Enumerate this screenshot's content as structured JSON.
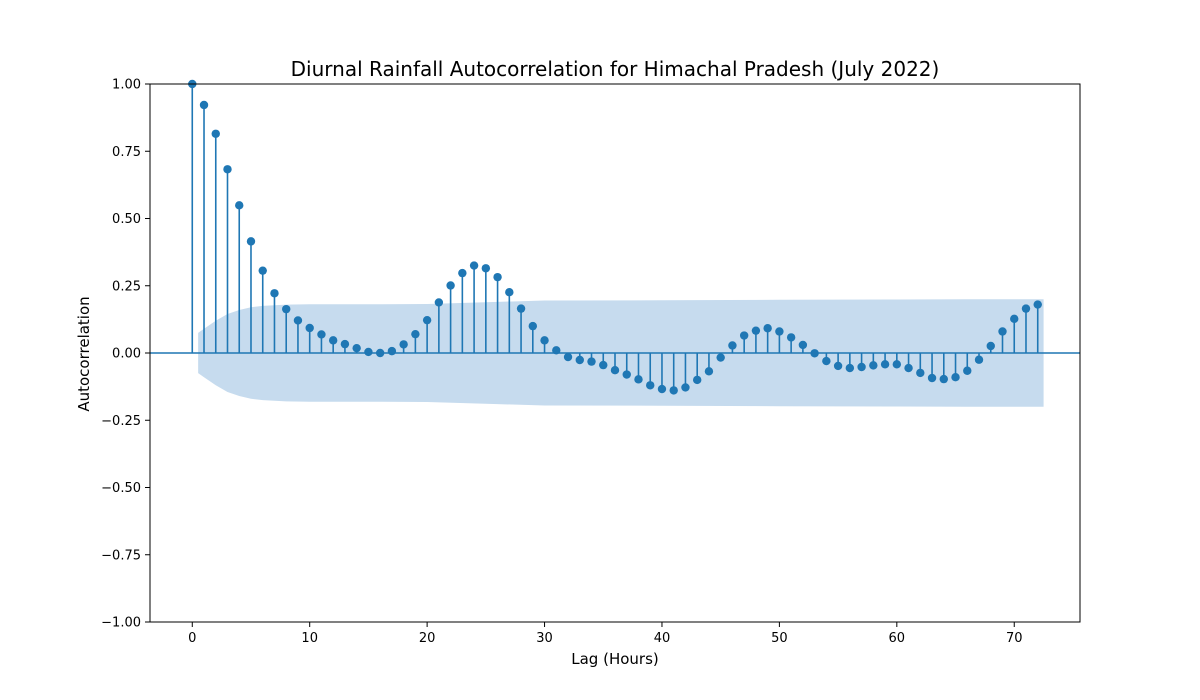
{
  "chart_data": {
    "type": "stem",
    "title": "Diurnal Rainfall Autocorrelation for Himachal Pradesh (July 2022)",
    "xlabel": "Lag (Hours)",
    "ylabel": "Autocorrelation",
    "xlim": [
      -3.6,
      75.6
    ],
    "ylim": [
      -1.0,
      1.0
    ],
    "xticks": [
      0,
      10,
      20,
      30,
      40,
      50,
      60,
      70
    ],
    "xtick_labels": [
      "0",
      "10",
      "20",
      "30",
      "40",
      "50",
      "60",
      "70"
    ],
    "yticks": [
      -1.0,
      -0.75,
      -0.5,
      -0.25,
      0.0,
      0.25,
      0.5,
      0.75,
      1.0
    ],
    "ytick_labels": [
      "−1.00",
      "−0.75",
      "−0.50",
      "−0.25",
      "0.00",
      "0.25",
      "0.50",
      "0.75",
      "1.00"
    ],
    "grid": false,
    "legend": "none",
    "colors": {
      "stem": "#1f77b4",
      "band": "#c6dbee"
    },
    "lags": [
      0,
      1,
      2,
      3,
      4,
      5,
      6,
      7,
      8,
      9,
      10,
      11,
      12,
      13,
      14,
      15,
      16,
      17,
      18,
      19,
      20,
      21,
      22,
      23,
      24,
      25,
      26,
      27,
      28,
      29,
      30,
      31,
      32,
      33,
      34,
      35,
      36,
      37,
      38,
      39,
      40,
      41,
      42,
      43,
      44,
      45,
      46,
      47,
      48,
      49,
      50,
      51,
      52,
      53,
      54,
      55,
      56,
      57,
      58,
      59,
      60,
      61,
      62,
      63,
      64,
      65,
      66,
      67,
      68,
      69,
      70,
      71,
      72
    ],
    "values": [
      1.0,
      0.922,
      0.815,
      0.683,
      0.549,
      0.415,
      0.306,
      0.222,
      0.163,
      0.121,
      0.093,
      0.069,
      0.047,
      0.033,
      0.018,
      0.004,
      0.0,
      0.007,
      0.032,
      0.07,
      0.122,
      0.188,
      0.251,
      0.297,
      0.325,
      0.315,
      0.282,
      0.226,
      0.165,
      0.1,
      0.047,
      0.01,
      -0.015,
      -0.026,
      -0.032,
      -0.045,
      -0.064,
      -0.08,
      -0.098,
      -0.12,
      -0.134,
      -0.139,
      -0.128,
      -0.1,
      -0.068,
      -0.017,
      0.028,
      0.065,
      0.083,
      0.092,
      0.08,
      0.058,
      0.03,
      -0.001,
      -0.03,
      -0.048,
      -0.056,
      -0.052,
      -0.046,
      -0.042,
      -0.042,
      -0.056,
      -0.074,
      -0.093,
      -0.097,
      -0.09,
      -0.066,
      -0.025,
      0.026,
      0.08,
      0.127,
      0.165,
      0.18
    ],
    "confidence_band": {
      "lags": [
        0.5,
        1,
        2,
        3,
        4,
        5,
        6,
        8,
        10,
        14,
        20,
        26,
        30,
        40,
        50,
        60,
        66,
        70,
        72.5
      ],
      "upper": [
        0.075,
        0.09,
        0.12,
        0.145,
        0.16,
        0.17,
        0.175,
        0.18,
        0.181,
        0.181,
        0.182,
        0.19,
        0.195,
        0.196,
        0.198,
        0.199,
        0.2,
        0.2,
        0.2
      ]
    }
  }
}
